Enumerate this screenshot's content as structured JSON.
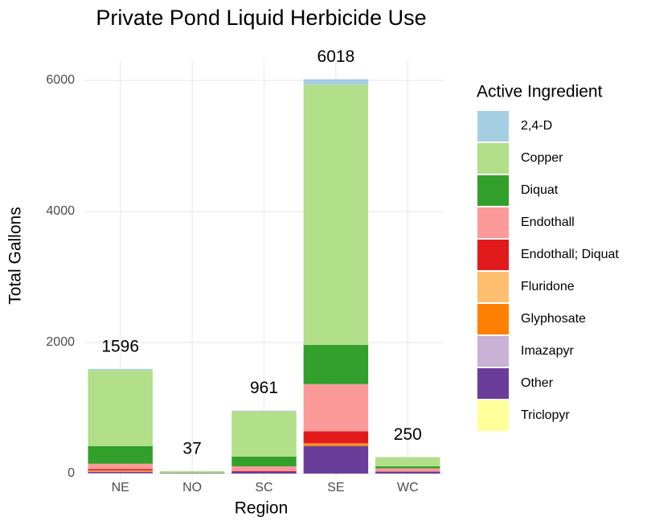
{
  "chart_data": {
    "type": "stacked_bar",
    "title": "Private Pond Liquid Herbicide Use",
    "x_label": "Region",
    "y_label": "Total Gallons",
    "legend_title": "Active Ingredient",
    "categories": [
      "NE",
      "NO",
      "SC",
      "SE",
      "WC"
    ],
    "series": [
      {
        "name": "2,4-D",
        "color": "#a6cee3",
        "values": [
          16,
          0,
          11,
          83,
          0
        ]
      },
      {
        "name": "Copper",
        "color": "#b2df8a",
        "values": [
          1160,
          30,
          690,
          3970,
          140
        ]
      },
      {
        "name": "Diquat",
        "color": "#33a02c",
        "values": [
          270,
          0,
          150,
          600,
          30
        ]
      },
      {
        "name": "Endothall",
        "color": "#fb9a99",
        "values": [
          80,
          0,
          70,
          720,
          50
        ]
      },
      {
        "name": "Endothall; Diquat",
        "color": "#e31a1c",
        "values": [
          25,
          0,
          10,
          185,
          0
        ]
      },
      {
        "name": "Fluridone",
        "color": "#fdbf6f",
        "values": [
          5,
          0,
          0,
          10,
          0
        ]
      },
      {
        "name": "Glyphosate",
        "color": "#ff7f00",
        "values": [
          10,
          0,
          0,
          30,
          0
        ]
      },
      {
        "name": "Imazapyr",
        "color": "#cab2d6",
        "values": [
          5,
          0,
          0,
          0,
          0
        ]
      },
      {
        "name": "Other",
        "color": "#6a3d9a",
        "values": [
          20,
          7,
          30,
          420,
          30
        ]
      },
      {
        "name": "Triclopyr",
        "color": "#ffff99",
        "values": [
          5,
          0,
          0,
          0,
          0
        ]
      }
    ],
    "totals": [
      1596,
      37,
      961,
      6018,
      250
    ],
    "ylim": [
      0,
      6300
    ],
    "yticks": [
      0,
      2000,
      4000,
      6000
    ],
    "grid": true,
    "legend": "right"
  }
}
